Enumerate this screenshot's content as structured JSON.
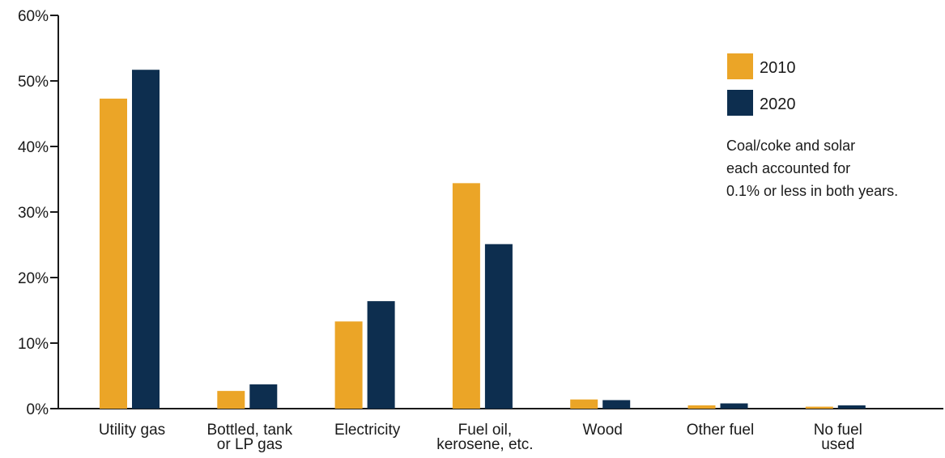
{
  "chart_data": {
    "type": "bar",
    "title": "",
    "xlabel": "",
    "ylabel": "",
    "ylim": [
      0,
      60
    ],
    "yticks": [
      "0%",
      "10%",
      "20%",
      "30%",
      "40%",
      "50%",
      "60%"
    ],
    "ytick_values": [
      0,
      10,
      20,
      30,
      40,
      50,
      60
    ],
    "categories": [
      [
        "Utility gas"
      ],
      [
        "Bottled, tank",
        "or LP gas"
      ],
      [
        "Electricity"
      ],
      [
        "Fuel oil,",
        "kerosene, etc."
      ],
      [
        "Wood"
      ],
      [
        "Other fuel"
      ],
      [
        "No fuel",
        "used"
      ]
    ],
    "series": [
      {
        "name": "2010",
        "color": "#EBA527",
        "values": [
          47.3,
          2.7,
          13.3,
          34.4,
          1.4,
          0.5,
          0.3
        ]
      },
      {
        "name": "2020",
        "color": "#0D2E4F",
        "values": [
          51.7,
          3.7,
          16.4,
          25.1,
          1.3,
          0.8,
          0.5
        ]
      }
    ],
    "grid": false,
    "legend_position": "top-right",
    "annotation": [
      "Coal/coke and solar",
      "each accounted for",
      "0.1% or less in both years."
    ],
    "axis_color": "#1a1a1a"
  }
}
